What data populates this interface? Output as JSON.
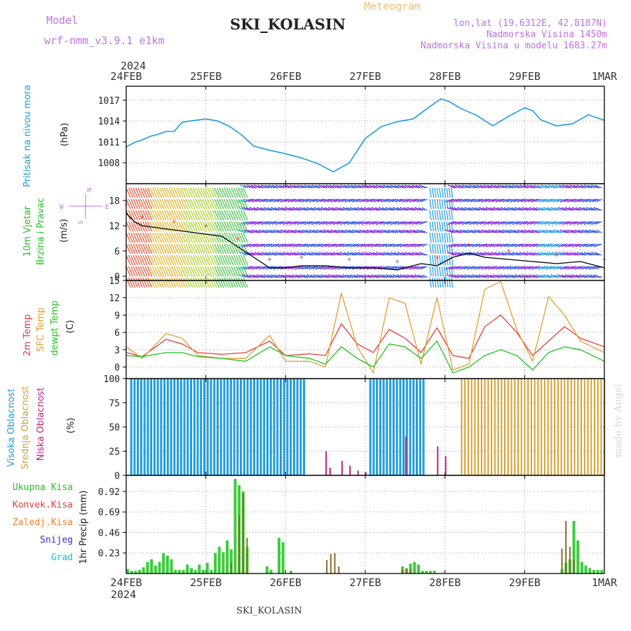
{
  "header": {
    "model_label": "Model",
    "model_name": "wrf-nmm_v3.9.1 e1km",
    "title": "SKI_KOLASIN",
    "meteogram_label": "Meteogram",
    "lonlat": "lon,lat (19.6312E, 42.8187N)",
    "altitude": "Nadmorska Visina 1450m",
    "model_altitude": "Nadmorska Visina u modelu 1683.27m"
  },
  "footer": {
    "station": "SKI_KOLASIN",
    "credit": "made by Angel"
  },
  "time_axis": {
    "year": "2024",
    "labels": [
      "24FEB",
      "25FEB",
      "26FEB",
      "27FEB",
      "28FEB",
      "29FEB",
      "1MAR"
    ]
  },
  "panel_labels": {
    "pressure": [
      "Pritisak na nivou mora",
      "(hPa)"
    ],
    "wind": [
      "10m Vjetar",
      "Brzina i Pravac",
      "(m/s)"
    ],
    "compass": [
      "N",
      "W",
      "E",
      "S"
    ],
    "temp": [
      "2m Temp",
      "SFC Temp",
      "dewpt Temp",
      "(C)"
    ],
    "cloud": [
      "Visoka Oblacnost",
      "Srednja Oblacnost",
      "Niska Oblacnost",
      "(%)"
    ],
    "precip": [
      "Ukupna Kisa",
      "Konvek.Kisa",
      "Zaledj.Kisa",
      "Snijeg",
      "Grad",
      "1hr Precip (mm)"
    ]
  },
  "colors": {
    "pressure": "#1e9be0",
    "t2m": "#e83c3c",
    "sfc": "#dfa030",
    "dew": "#22c022",
    "high_cloud": "#1e9be0",
    "mid_cloud": "#d4a030",
    "low_cloud": "#c0207a",
    "rain": "#3ccc3c",
    "conv": "#e83c3c",
    "frz": "#f08030",
    "snow": "#3030e0",
    "hail": "#20c0c0",
    "purple_text": "#c070e0"
  },
  "chart_data": [
    {
      "type": "line",
      "name": "pressure",
      "ylabel": "(hPa)",
      "ylim": [
        1005,
        1019
      ],
      "yticks": [
        1008,
        1011,
        1014,
        1017
      ],
      "x_days": [
        0,
        0.1,
        0.2,
        0.3,
        0.4,
        0.5,
        0.6,
        0.7,
        0.8,
        1.0,
        1.15,
        1.3,
        1.45,
        1.6,
        1.8,
        2.0,
        2.2,
        2.4,
        2.6,
        2.8,
        3.0,
        3.2,
        3.4,
        3.6,
        3.8,
        3.95,
        4.05,
        4.2,
        4.4,
        4.6,
        4.8,
        5.0,
        5.1,
        5.2,
        5.4,
        5.6,
        5.8,
        6.0
      ],
      "values": [
        1010.3,
        1010.9,
        1011.3,
        1011.8,
        1012.1,
        1012.5,
        1012.5,
        1013.8,
        1014.0,
        1014.3,
        1014.0,
        1013.2,
        1012.0,
        1010.4,
        1009.8,
        1009.3,
        1008.7,
        1007.9,
        1006.7,
        1008.0,
        1011.5,
        1013.2,
        1013.9,
        1014.3,
        1016.0,
        1017.2,
        1016.8,
        1015.8,
        1014.8,
        1013.3,
        1014.7,
        1015.9,
        1015.5,
        1014.2,
        1013.3,
        1013.6,
        1014.9,
        1014.1
      ]
    },
    {
      "type": "line",
      "name": "wind",
      "ylabel": "(m/s)",
      "ylim": [
        -1,
        22
      ],
      "yticks": [
        0,
        6,
        12,
        18
      ],
      "x_days": [
        0,
        0.1,
        0.2,
        0.4,
        0.6,
        0.8,
        1.0,
        1.2,
        1.4,
        1.6,
        1.8,
        2.0,
        2.2,
        2.5,
        2.8,
        3.1,
        3.4,
        3.7,
        3.9,
        4.1,
        4.3,
        4.5,
        4.8,
        5.1,
        5.4,
        5.7,
        6.0
      ],
      "values": [
        15,
        13,
        12,
        11.5,
        11,
        10.5,
        10,
        9.5,
        7,
        4.5,
        2,
        2,
        2.5,
        2.5,
        2,
        2,
        1.5,
        3,
        2.5,
        4.5,
        5.5,
        4.5,
        4,
        3.5,
        3,
        3.5,
        2
      ]
    },
    {
      "type": "line",
      "name": "temperature",
      "ylabel": "(C)",
      "ylim": [
        -2,
        15
      ],
      "yticks": [
        0,
        3,
        6,
        9,
        12,
        15
      ],
      "x_days": [
        0,
        0.2,
        0.5,
        0.7,
        0.9,
        1.2,
        1.5,
        1.8,
        2.0,
        2.3,
        2.5,
        2.7,
        2.9,
        3.1,
        3.3,
        3.5,
        3.7,
        3.9,
        4.1,
        4.3,
        4.5,
        4.7,
        4.9,
        5.1,
        5.3,
        5.5,
        5.7,
        6.0
      ],
      "series": [
        {
          "name": "2m Temp",
          "values": [
            2.5,
            1.8,
            4.8,
            4.0,
            2.5,
            2.2,
            2.5,
            4.5,
            2.0,
            2.3,
            2.0,
            7.5,
            4.0,
            2.5,
            6.5,
            5.0,
            2.5,
            6.8,
            2.0,
            1.5,
            7.0,
            9.0,
            6.0,
            2.0,
            4.5,
            7.0,
            5.0,
            3.5
          ]
        },
        {
          "name": "SFC Temp",
          "values": [
            3.5,
            1.5,
            5.8,
            5.0,
            2.0,
            1.5,
            1.5,
            5.5,
            1.0,
            1.0,
            0.0,
            12.8,
            3.5,
            -1.0,
            12.0,
            11.0,
            0.5,
            12.0,
            -0.5,
            0.5,
            13.5,
            14.8,
            6.5,
            1.0,
            12.2,
            9.0,
            4.5,
            2.5
          ]
        },
        {
          "name": "dewpt Temp",
          "values": [
            2.0,
            1.8,
            2.5,
            2.5,
            1.8,
            1.5,
            1.0,
            3.5,
            2.0,
            1.5,
            0.5,
            3.5,
            1.5,
            0.0,
            4.0,
            3.5,
            1.5,
            4.5,
            -1.0,
            0.0,
            2.0,
            3.0,
            2.0,
            -0.5,
            2.5,
            3.5,
            3.0,
            1.0
          ]
        }
      ]
    },
    {
      "type": "bar",
      "name": "cloud cover",
      "ylabel": "(%)",
      "ylim": [
        0,
        100
      ],
      "yticks": [
        0,
        25,
        50,
        75,
        100
      ],
      "series": [
        {
          "name": "Visoka Oblacnost",
          "periods_days": [
            [
              0.05,
              2.25
            ],
            [
              3.05,
              3.75
            ]
          ],
          "value": 100
        },
        {
          "name": "Srednja Oblacnost",
          "periods_days": [
            [
              4.2,
              6.0
            ]
          ],
          "value": 100
        },
        {
          "name": "Niska Oblacnost",
          "x_days": [
            2.5,
            2.55,
            2.7,
            2.8,
            2.9,
            3.0,
            3.5,
            3.9,
            4.0
          ],
          "values": [
            25,
            8,
            15,
            10,
            5,
            3,
            40,
            30,
            20
          ]
        }
      ]
    },
    {
      "type": "bar",
      "name": "precipitation",
      "ylabel": "1hr Precip (mm)",
      "ylim": [
        0,
        1.1
      ],
      "yticks": [
        0.23,
        0.46,
        0.69,
        0.92
      ],
      "series": [
        {
          "name": "Ukupna Kisa",
          "x_days": [
            0.0,
            0.05,
            0.1,
            0.15,
            0.2,
            0.25,
            0.3,
            0.35,
            0.4,
            0.45,
            0.5,
            0.55,
            0.6,
            0.65,
            0.7,
            0.75,
            0.8,
            0.85,
            0.9,
            0.95,
            1.0,
            1.05,
            1.1,
            1.15,
            1.2,
            1.25,
            1.3,
            1.35,
            1.4,
            1.45,
            1.5,
            1.75,
            1.8,
            1.9,
            1.95,
            2.05,
            3.45,
            3.5,
            3.55,
            3.6,
            3.65,
            3.7,
            3.75,
            3.8,
            3.85,
            5.45,
            5.5,
            5.55,
            5.6,
            5.65,
            5.7,
            5.75,
            5.8,
            5.85,
            5.9,
            5.95
          ],
          "values": [
            0.05,
            0.03,
            0.03,
            0.04,
            0.07,
            0.13,
            0.16,
            0.09,
            0.13,
            0.23,
            0.2,
            0.16,
            0.04,
            0.04,
            0.04,
            0.1,
            0.06,
            0.04,
            0.1,
            0.04,
            0.12,
            0.04,
            0.23,
            0.3,
            0.24,
            0.37,
            0.27,
            1.06,
            0.99,
            0.92,
            0.3,
            0.08,
            0.04,
            0.4,
            0.35,
            0.03,
            0.08,
            0.06,
            0.11,
            0.13,
            0.1,
            0.03,
            0.03,
            0.03,
            0.03,
            0.05,
            0.12,
            0.16,
            0.59,
            0.37,
            0.13,
            0.09,
            0.06,
            0.04,
            0.04,
            0.04
          ]
        },
        {
          "name": "Zaledj.Kisa",
          "x_days": [
            1.3,
            1.4,
            1.45,
            1.5,
            2.5,
            2.55,
            2.6,
            2.65,
            3.45,
            3.5,
            3.55,
            5.45,
            5.5,
            5.55,
            5.6
          ],
          "values": [
            0.12,
            0.65,
            0.9,
            0.4,
            0.15,
            0.22,
            0.23,
            0.08,
            0.04,
            0.05,
            0.05,
            0.28,
            0.59,
            0.3,
            0.15
          ]
        }
      ]
    }
  ]
}
